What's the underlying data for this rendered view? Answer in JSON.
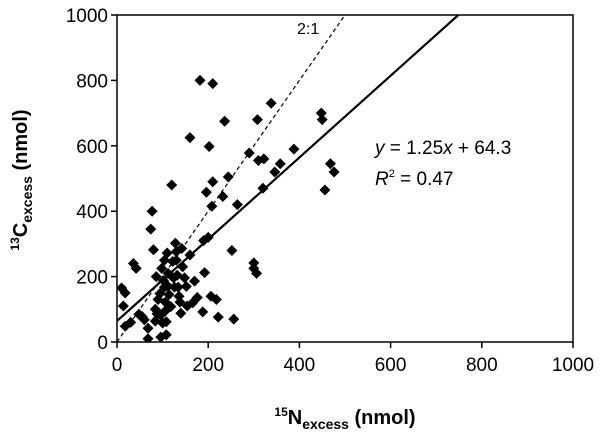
{
  "chart_data": {
    "type": "scatter",
    "title": "",
    "xlabel": {
      "sup": "15",
      "main": "N",
      "sub": "excess",
      "unit": " (nmol)"
    },
    "ylabel": {
      "sup": "13",
      "main": "C",
      "sub": "excess",
      "unit": " (nmol)"
    },
    "xlim": [
      0,
      1000
    ],
    "ylim": [
      0,
      1000
    ],
    "xticks": [
      "0",
      "200",
      "400",
      "600",
      "800",
      "1000"
    ],
    "yticks": [
      "0",
      "200",
      "400",
      "600",
      "800",
      "1000"
    ],
    "grid": false,
    "marker": "diamond",
    "color": "#000000",
    "series": [
      {
        "points": [
          [
            10,
            165
          ],
          [
            14,
            110
          ],
          [
            18,
            150
          ],
          [
            18,
            48
          ],
          [
            30,
            60
          ],
          [
            36,
            240
          ],
          [
            42,
            225
          ],
          [
            48,
            85
          ],
          [
            55,
            78
          ],
          [
            60,
            68
          ],
          [
            68,
            42
          ],
          [
            68,
            10
          ],
          [
            74,
            345
          ],
          [
            77,
            400
          ],
          [
            80,
            282
          ],
          [
            84,
            100
          ],
          [
            84,
            64
          ],
          [
            86,
            200
          ],
          [
            88,
            86
          ],
          [
            90,
            130
          ],
          [
            94,
            148
          ],
          [
            96,
            82
          ],
          [
            96,
            15
          ],
          [
            98,
            225
          ],
          [
            100,
            58
          ],
          [
            102,
            188
          ],
          [
            104,
            250
          ],
          [
            104,
            168
          ],
          [
            106,
            122
          ],
          [
            106,
            95
          ],
          [
            108,
            62
          ],
          [
            108,
            22
          ],
          [
            110,
            272
          ],
          [
            112,
            210
          ],
          [
            112,
            170
          ],
          [
            114,
            145
          ],
          [
            118,
            108
          ],
          [
            120,
            480
          ],
          [
            122,
            246
          ],
          [
            124,
            196
          ],
          [
            126,
            168
          ],
          [
            128,
            302
          ],
          [
            130,
            276
          ],
          [
            130,
            250
          ],
          [
            132,
            204
          ],
          [
            134,
            168
          ],
          [
            136,
            140
          ],
          [
            138,
            122
          ],
          [
            140,
            88
          ],
          [
            142,
            286
          ],
          [
            144,
            230
          ],
          [
            148,
            196
          ],
          [
            152,
            170
          ],
          [
            154,
            110
          ],
          [
            160,
            625
          ],
          [
            160,
            266
          ],
          [
            166,
            120
          ],
          [
            170,
            186
          ],
          [
            176,
            136
          ],
          [
            182,
            800
          ],
          [
            188,
            92
          ],
          [
            190,
            310
          ],
          [
            192,
            212
          ],
          [
            196,
            458
          ],
          [
            200,
            320
          ],
          [
            202,
            598
          ],
          [
            206,
            140
          ],
          [
            208,
            415
          ],
          [
            210,
            790
          ],
          [
            210,
            490
          ],
          [
            218,
            130
          ],
          [
            222,
            76
          ],
          [
            232,
            445
          ],
          [
            236,
            675
          ],
          [
            244,
            505
          ],
          [
            252,
            280
          ],
          [
            256,
            70
          ],
          [
            264,
            420
          ],
          [
            290,
            578
          ],
          [
            300,
            242
          ],
          [
            300,
            225
          ],
          [
            306,
            210
          ],
          [
            308,
            680
          ],
          [
            310,
            555
          ],
          [
            320,
            470
          ],
          [
            322,
            560
          ],
          [
            338,
            730
          ],
          [
            346,
            520
          ],
          [
            358,
            545
          ],
          [
            388,
            590
          ],
          [
            448,
            700
          ],
          [
            450,
            680
          ],
          [
            456,
            465
          ],
          [
            468,
            545
          ],
          [
            476,
            520
          ]
        ]
      }
    ],
    "fit_line": {
      "slope": 1.25,
      "intercept": 64.3,
      "style": "solid"
    },
    "ratio_line": {
      "slope": 2,
      "intercept": 0,
      "style": "dashed",
      "label": "2:1"
    },
    "equation": {
      "y": "y",
      "eq": " = 1.25",
      "x": "x",
      "rest": " + 64.3"
    },
    "r_squared": {
      "R": "R",
      "sup": "2",
      "rest": " = 0.47"
    }
  }
}
